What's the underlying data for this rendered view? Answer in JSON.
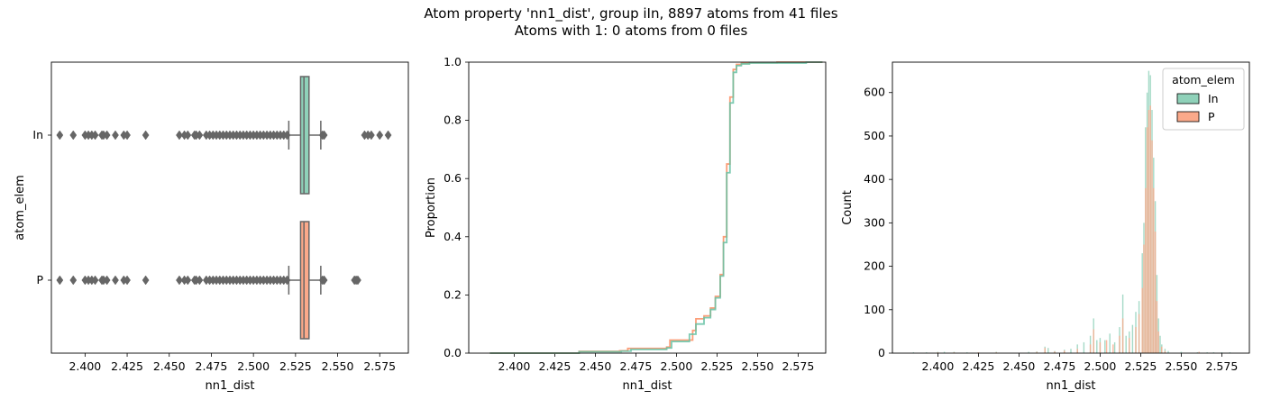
{
  "figure": {
    "title_line1": "Atom property 'nn1_dist', group iIn, 8897 atoms from 41 files",
    "title_line2": "Atoms with 1: 0 atoms from 0 files"
  },
  "colors": {
    "In": "#8fd1b9",
    "P": "#fba98a",
    "box_edge": "#666666",
    "In_dark": "#66c2a5",
    "P_dark": "#fc8d62"
  },
  "chart_data": [
    {
      "type": "box",
      "xlabel": "nn1_dist",
      "ylabel": "atom_elem",
      "xlim": [
        2.38,
        2.592
      ],
      "xticks": [
        "2.400",
        "2.425",
        "2.450",
        "2.475",
        "2.500",
        "2.525",
        "2.550",
        "2.575"
      ],
      "categories": [
        "In",
        "P"
      ],
      "boxes": [
        {
          "name": "In",
          "q1": 2.528,
          "median": 2.53,
          "q3": 2.533,
          "whisker_low": 2.521,
          "whisker_high": 2.54,
          "outliers": [
            2.385,
            2.393,
            2.4,
            2.402,
            2.404,
            2.406,
            2.41,
            2.411,
            2.413,
            2.418,
            2.423,
            2.425,
            2.436,
            2.456,
            2.459,
            2.461,
            2.465,
            2.466,
            2.468,
            2.472,
            2.474,
            2.476,
            2.478,
            2.48,
            2.482,
            2.484,
            2.486,
            2.488,
            2.49,
            2.492,
            2.494,
            2.496,
            2.498,
            2.5,
            2.502,
            2.504,
            2.506,
            2.508,
            2.51,
            2.512,
            2.514,
            2.516,
            2.518,
            2.52,
            2.541,
            2.542,
            2.566,
            2.568,
            2.57,
            2.575,
            2.58
          ]
        },
        {
          "name": "P",
          "q1": 2.528,
          "median": 2.53,
          "q3": 2.533,
          "whisker_low": 2.521,
          "whisker_high": 2.54,
          "outliers": [
            2.385,
            2.393,
            2.4,
            2.402,
            2.404,
            2.406,
            2.41,
            2.411,
            2.413,
            2.418,
            2.423,
            2.425,
            2.436,
            2.456,
            2.459,
            2.461,
            2.465,
            2.466,
            2.468,
            2.472,
            2.474,
            2.476,
            2.478,
            2.48,
            2.482,
            2.484,
            2.486,
            2.488,
            2.49,
            2.492,
            2.494,
            2.496,
            2.498,
            2.5,
            2.502,
            2.504,
            2.506,
            2.508,
            2.51,
            2.512,
            2.514,
            2.516,
            2.518,
            2.52,
            2.541,
            2.542,
            2.56,
            2.561,
            2.562
          ]
        }
      ]
    },
    {
      "type": "line",
      "xlabel": "nn1_dist",
      "ylabel": "Proportion",
      "xlim": [
        2.372,
        2.592
      ],
      "ylim": [
        0,
        1
      ],
      "xticks": [
        "2.400",
        "2.425",
        "2.450",
        "2.475",
        "2.500",
        "2.525",
        "2.550",
        "2.575"
      ],
      "yticks": [
        "0.0",
        "0.2",
        "0.4",
        "0.6",
        "0.8",
        "1.0"
      ],
      "series": [
        {
          "name": "P",
          "x": [
            2.385,
            2.44,
            2.465,
            2.47,
            2.494,
            2.496,
            2.51,
            2.512,
            2.517,
            2.521,
            2.524,
            2.527,
            2.529,
            2.531,
            2.533,
            2.535,
            2.537,
            2.54,
            2.545,
            2.562,
            2.59
          ],
          "y": [
            0.0,
            0.006,
            0.008,
            0.016,
            0.021,
            0.045,
            0.078,
            0.118,
            0.128,
            0.155,
            0.195,
            0.27,
            0.4,
            0.65,
            0.88,
            0.975,
            0.992,
            0.996,
            0.998,
            1.0,
            1.0
          ]
        },
        {
          "name": "In",
          "x": [
            2.385,
            2.44,
            2.466,
            2.472,
            2.494,
            2.497,
            2.508,
            2.512,
            2.517,
            2.521,
            2.524,
            2.527,
            2.529,
            2.531,
            2.533,
            2.535,
            2.537,
            2.54,
            2.545,
            2.58,
            2.59
          ],
          "y": [
            0.0,
            0.005,
            0.007,
            0.013,
            0.018,
            0.04,
            0.065,
            0.1,
            0.122,
            0.15,
            0.19,
            0.265,
            0.38,
            0.62,
            0.86,
            0.965,
            0.988,
            0.994,
            0.997,
            1.0,
            1.0
          ]
        }
      ]
    },
    {
      "type": "bar",
      "xlabel": "nn1_dist",
      "ylabel": "Count",
      "xlim": [
        2.372,
        2.592
      ],
      "ylim": [
        0,
        670
      ],
      "xticks": [
        "2.400",
        "2.425",
        "2.450",
        "2.475",
        "2.500",
        "2.525",
        "2.550",
        "2.575"
      ],
      "yticks": [
        "0",
        "100",
        "200",
        "300",
        "400",
        "500",
        "600"
      ],
      "legend": {
        "title": "atom_elem",
        "entries": [
          "In",
          "P"
        ],
        "placement": "upper right"
      },
      "series": [
        {
          "name": "In",
          "x": [
            2.385,
            2.393,
            2.4,
            2.404,
            2.41,
            2.418,
            2.425,
            2.436,
            2.456,
            2.461,
            2.466,
            2.468,
            2.472,
            2.478,
            2.482,
            2.486,
            2.49,
            2.494,
            2.496,
            2.498,
            2.5,
            2.503,
            2.506,
            2.509,
            2.512,
            2.514,
            2.516,
            2.518,
            2.52,
            2.522,
            2.524,
            2.526,
            2.527,
            2.528,
            2.529,
            2.53,
            2.531,
            2.532,
            2.533,
            2.534,
            2.535,
            2.536,
            2.537,
            2.538,
            2.54,
            2.542,
            2.55,
            2.56,
            2.566,
            2.57,
            2.575,
            2.58
          ],
          "values": [
            2,
            2,
            3,
            3,
            3,
            2,
            2,
            3,
            3,
            4,
            15,
            12,
            5,
            8,
            10,
            20,
            25,
            40,
            80,
            30,
            35,
            30,
            45,
            25,
            60,
            135,
            40,
            50,
            65,
            95,
            120,
            230,
            300,
            520,
            600,
            650,
            640,
            560,
            450,
            350,
            180,
            80,
            40,
            20,
            10,
            5,
            3,
            2,
            2,
            2,
            2,
            2
          ]
        },
        {
          "name": "P",
          "x": [
            2.4,
            2.41,
            2.425,
            2.436,
            2.461,
            2.466,
            2.472,
            2.478,
            2.486,
            2.494,
            2.496,
            2.5,
            2.504,
            2.508,
            2.512,
            2.514,
            2.518,
            2.522,
            2.524,
            2.526,
            2.527,
            2.528,
            2.529,
            2.53,
            2.531,
            2.532,
            2.533,
            2.534,
            2.535,
            2.536,
            2.538,
            2.54,
            2.561
          ],
          "values": [
            2,
            2,
            2,
            2,
            3,
            12,
            4,
            6,
            10,
            20,
            55,
            25,
            30,
            20,
            40,
            80,
            35,
            60,
            90,
            150,
            250,
            380,
            520,
            560,
            570,
            490,
            380,
            280,
            120,
            50,
            15,
            5,
            3
          ]
        }
      ]
    }
  ]
}
